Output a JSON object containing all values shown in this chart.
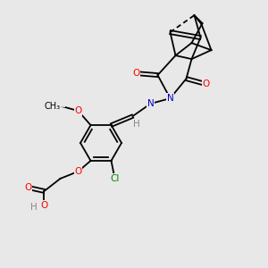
{
  "bg_color": "#e8e8e8",
  "bond_color": "#000000",
  "atom_colors": {
    "O": "#ff0000",
    "N": "#0000cc",
    "Cl": "#008800",
    "H": "#888888",
    "C": "#000000"
  },
  "figsize": [
    3.0,
    3.0
  ],
  "dpi": 100
}
